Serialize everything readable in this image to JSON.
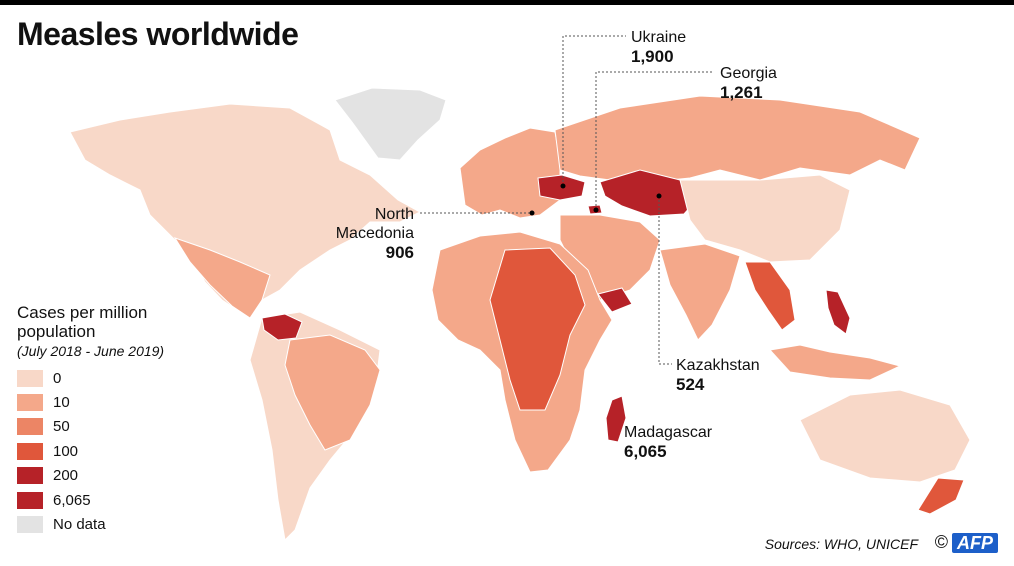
{
  "title": "Measles worldwide",
  "legend": {
    "title": "Cases per million population",
    "subtitle": "(July 2018 - June 2019)",
    "items": [
      {
        "label": "0",
        "color": "#f8d8c8"
      },
      {
        "label": "10",
        "color": "#f4a88a"
      },
      {
        "label": "50",
        "color": "#ec8565"
      },
      {
        "label": "100",
        "color": "#e0573b"
      },
      {
        "label": "200",
        "color": "#b62228"
      },
      {
        "label": "6,065",
        "color": "#b62228"
      },
      {
        "label": "No data",
        "color": "#e3e3e3"
      }
    ]
  },
  "callouts": {
    "ukraine": {
      "name": "Ukraine",
      "value": "1,900"
    },
    "georgia": {
      "name": "Georgia",
      "value": "1,261"
    },
    "north_macedonia": {
      "name": "North Macedonia",
      "value": "906"
    },
    "kazakhstan": {
      "name": "Kazakhstan",
      "value": "524"
    },
    "madagascar": {
      "name": "Madagascar",
      "value": "6,065"
    }
  },
  "source": "Sources: WHO, UNICEF",
  "credit": {
    "copyright": "©",
    "logo": "AFP"
  }
}
